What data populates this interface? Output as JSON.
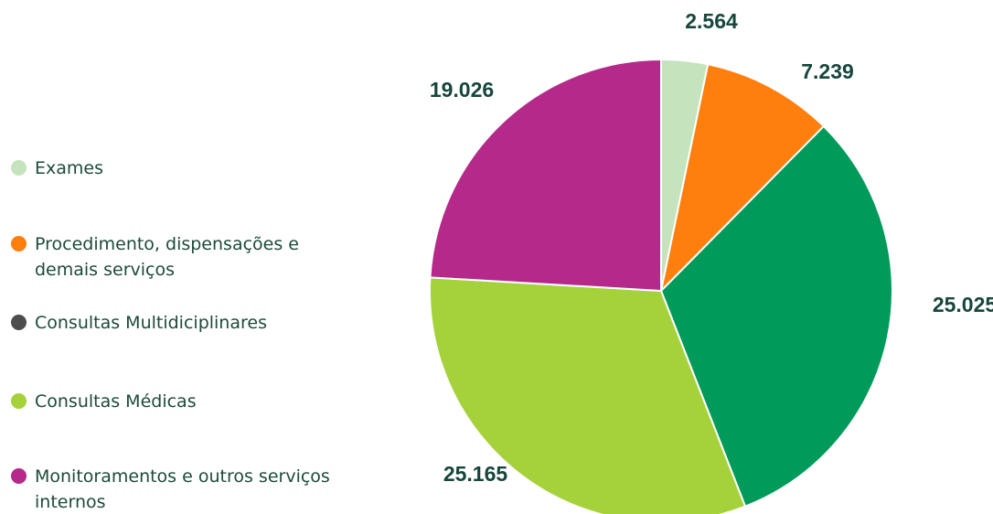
{
  "chart_data": {
    "type": "pie",
    "categories": [
      "Exames",
      "Procedimento, dispensações e demais serviços",
      "Consultas Multidiciplinares",
      "Consultas Médicas",
      "Monitoramentos e outros serviços internos"
    ],
    "values": [
      2564,
      7239,
      25025,
      25165,
      19026
    ],
    "value_labels": [
      "2.564",
      "7.239",
      "25.025",
      "25.165",
      "19.026"
    ],
    "colors": [
      "#c5e3bd",
      "#ff7f0e",
      "#009a5a",
      "#a5d23a",
      "#b5298a"
    ],
    "legend_colors": [
      "#c5e3bd",
      "#ff7f0e",
      "#4d4d4d",
      "#a5d23a",
      "#b5298a"
    ],
    "legend": "left"
  }
}
